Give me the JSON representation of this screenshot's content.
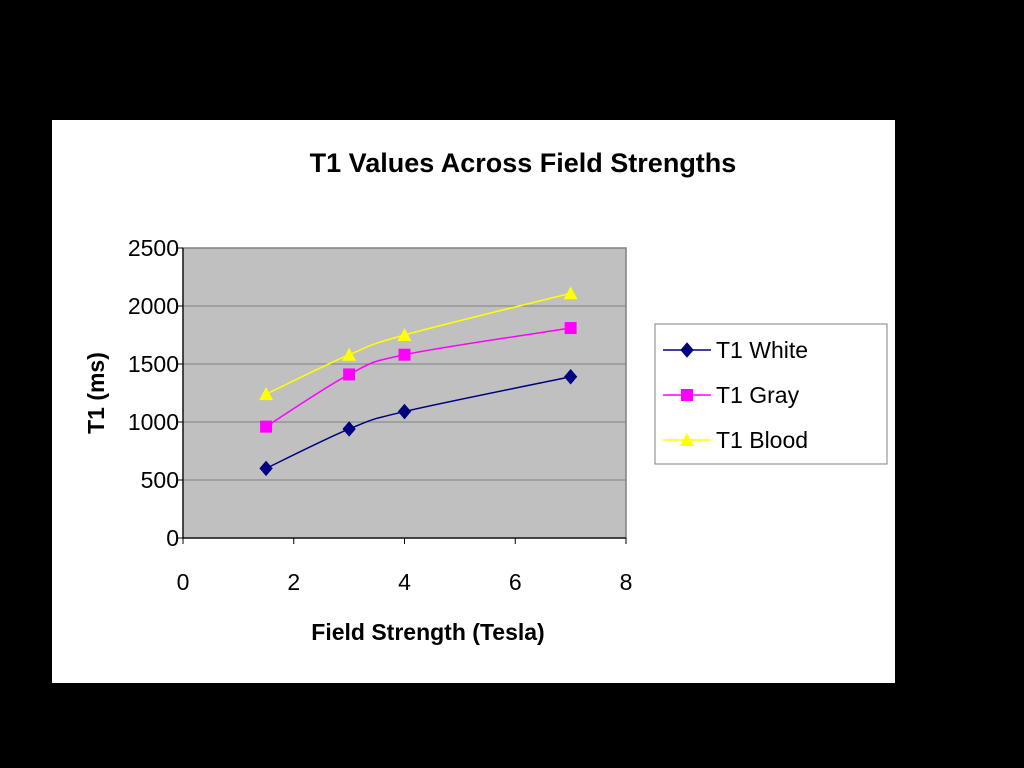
{
  "chart_data": {
    "type": "line",
    "title": "T1 Values Across Field Strengths",
    "xlabel": "Field Strength (Tesla)",
    "ylabel": "T1 (ms)",
    "xlim": [
      0,
      8
    ],
    "ylim": [
      0,
      2500
    ],
    "x_ticks": [
      "0",
      "2",
      "4",
      "6",
      "8"
    ],
    "y_ticks": [
      "0",
      "500",
      "1000",
      "1500",
      "2000",
      "2500"
    ],
    "grid": "horizontal",
    "legend_position": "right",
    "plot_background": "#C0C0C0",
    "series": [
      {
        "name": "T1 White",
        "color": "#000080",
        "marker": "diamond",
        "x": [
          1.5,
          3,
          4,
          7
        ],
        "y": [
          600,
          940,
          1090,
          1390
        ]
      },
      {
        "name": "T1 Gray",
        "color": "#FF00FF",
        "marker": "square",
        "x": [
          1.5,
          3,
          4,
          7
        ],
        "y": [
          960,
          1410,
          1580,
          1810
        ]
      },
      {
        "name": "T1 Blood",
        "color": "#FFFF00",
        "marker": "triangle",
        "x": [
          1.5,
          3,
          4,
          7
        ],
        "y": [
          1240,
          1580,
          1750,
          2110
        ]
      }
    ]
  }
}
